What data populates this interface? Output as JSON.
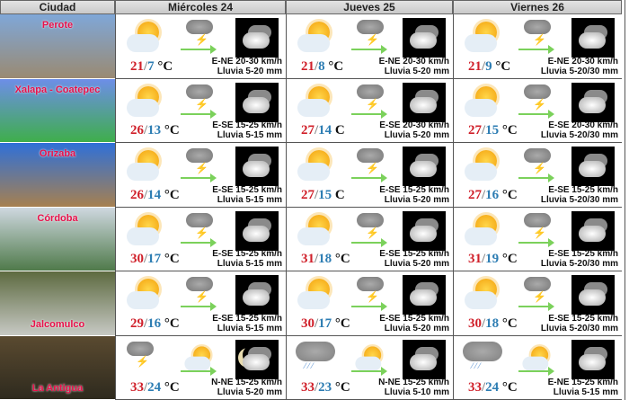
{
  "header": {
    "city": "Ciudad",
    "days": [
      "Miércoles 24",
      "Jueves 25",
      "Viernes 26"
    ]
  },
  "colors": {
    "high": "#d0202a",
    "low": "#2d7db3",
    "city_label": "#e8104a"
  },
  "rows": [
    {
      "city": "Perote",
      "photo": [
        "#7fa7d8",
        "#9a8a72"
      ],
      "label_pos": "top",
      "days": [
        {
          "icons": [
            "sun-cloud",
            "storm",
            "night-cloud"
          ],
          "high": "21",
          "low": "7",
          "unit": "°C",
          "wind": "E-NE 20-30 km/h",
          "rain": "Lluvia 5-20 mm"
        },
        {
          "icons": [
            "sun-cloud",
            "storm",
            "night-cloud"
          ],
          "high": "21",
          "low": "8",
          "unit": "°C",
          "wind": "E-NE 20-30 km/h",
          "rain": "Lluvia 5-20 mm"
        },
        {
          "icons": [
            "sun-cloud",
            "storm",
            "night-cloud"
          ],
          "high": "21",
          "low": "9",
          "unit": "°C",
          "wind": "E-NE 20-30 km/h",
          "rain": "Lluvia 5-20/30 mm"
        }
      ]
    },
    {
      "city": "Xalapa - Coatepec",
      "photo": [
        "#6d8ee8",
        "#3fae4b"
      ],
      "label_pos": "top",
      "days": [
        {
          "icons": [
            "sun-cloud",
            "storm",
            "night-cloud"
          ],
          "high": "26",
          "low": "13",
          "unit": "°C",
          "wind": "E-SE 15-25 km/h",
          "rain": "Lluvia 5-15 mm"
        },
        {
          "icons": [
            "sun-cloud",
            "storm",
            "night-cloud"
          ],
          "high": "27",
          "low": "14",
          "unit": "C",
          "wind": "E-SE 20-30 km/h",
          "rain": "Lluvia 5-20 mm"
        },
        {
          "icons": [
            "sun-cloud",
            "storm",
            "night-cloud"
          ],
          "high": "27",
          "low": "15",
          "unit": "°C",
          "wind": "E-SE 20-30 km/h",
          "rain": "Lluvia 5-20/30 mm"
        }
      ]
    },
    {
      "city": "Orizaba",
      "photo": [
        "#2f70d8",
        "#a68050"
      ],
      "label_pos": "top",
      "days": [
        {
          "icons": [
            "sun-cloud",
            "storm",
            "night-cloud"
          ],
          "high": "26",
          "low": "14",
          "unit": "°C",
          "wind": "E-SE 15-25 km/h",
          "rain": "Lluvia 5-15 mm"
        },
        {
          "icons": [
            "sun-cloud",
            "storm",
            "night-cloud"
          ],
          "high": "27",
          "low": "15",
          "unit": "C",
          "wind": "E-SE 15-25 km/h",
          "rain": "Lluvia 5-20 mm"
        },
        {
          "icons": [
            "sun-cloud",
            "storm",
            "night-cloud"
          ],
          "high": "27",
          "low": "16",
          "unit": "°C",
          "wind": "E-SE 15-25 km/h",
          "rain": "Lluvia 5-20/30 mm"
        }
      ]
    },
    {
      "city": "Córdoba",
      "photo": [
        "#cfd8e0",
        "#4f7a4a"
      ],
      "label_pos": "top",
      "days": [
        {
          "icons": [
            "sun-cloud",
            "storm",
            "night-cloud"
          ],
          "high": "30",
          "low": "17",
          "unit": "°C",
          "wind": "E-SE 15-25 km/h",
          "rain": "Lluvia 5-15 mm"
        },
        {
          "icons": [
            "sun-cloud",
            "storm",
            "night-cloud"
          ],
          "high": "31",
          "low": "18",
          "unit": "°C",
          "wind": "E-SE 15-25 km/h",
          "rain": "Lluvia 5-20 mm"
        },
        {
          "icons": [
            "sun-cloud",
            "storm",
            "night-cloud"
          ],
          "high": "31",
          "low": "19",
          "unit": "°C",
          "wind": "E-SE 15-25 km/h",
          "rain": "Lluvia 5-20/30 mm"
        }
      ]
    },
    {
      "city": "Jalcomulco",
      "photo": [
        "#5d6a40",
        "#c7c9c4"
      ],
      "label_pos": "bottom",
      "days": [
        {
          "icons": [
            "sun-cloud",
            "storm",
            "night-cloud"
          ],
          "high": "29",
          "low": "16",
          "unit": "°C",
          "wind": "E-SE 15-25 km/h",
          "rain": "Lluvia 5-15 mm"
        },
        {
          "icons": [
            "sun-cloud",
            "storm",
            "night-cloud"
          ],
          "high": "30",
          "low": "17",
          "unit": "°C",
          "wind": "E-SE 15-25 km/h",
          "rain": "Lluvia 5-20 mm"
        },
        {
          "icons": [
            "sun-cloud",
            "storm",
            "night-cloud"
          ],
          "high": "30",
          "low": "18",
          "unit": "°C",
          "wind": "E-SE 15-25 km/h",
          "rain": "Lluvia 5-20/30 mm"
        }
      ]
    },
    {
      "city": "La Antigua",
      "photo": [
        "#5a4a30",
        "#2e2a1e"
      ],
      "label_pos": "bottom",
      "days": [
        {
          "icons": [
            "storm",
            "sun-cloud",
            "night-moon-cloud"
          ],
          "high": "33",
          "low": "24",
          "unit": "°C",
          "wind": "N-NE 15-25 km/h",
          "rain": "Lluvia 5-20 mm"
        },
        {
          "icons": [
            "rain",
            "sun-cloud",
            "night-cloud"
          ],
          "high": "33",
          "low": "23",
          "unit": "°C",
          "wind": "N-NE 15-25 km/h",
          "rain": "Lluvia 5-10 mm"
        },
        {
          "icons": [
            "rain",
            "sun-cloud",
            "night-cloud"
          ],
          "high": "33",
          "low": "24",
          "unit": "°C",
          "wind": "E-NE 15-25 km/h",
          "rain": "Lluvia 5-15 mm"
        }
      ]
    }
  ]
}
